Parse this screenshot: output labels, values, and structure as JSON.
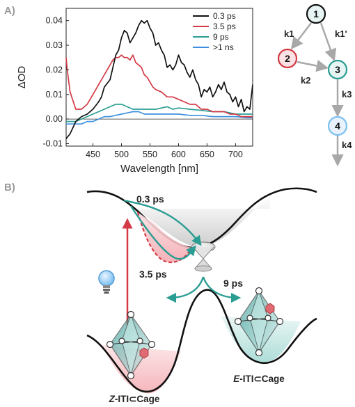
{
  "panel_a_label": "A)",
  "panel_b_label": "B)",
  "chart_data": {
    "type": "line",
    "xlabel": "Wavelength [nm]",
    "ylabel": "ΔOD",
    "xlim": [
      403,
      730
    ],
    "ylim": [
      -0.011,
      0.045
    ],
    "x_ticks": [
      450,
      500,
      550,
      600,
      650,
      700
    ],
    "y_ticks": [
      -0.01,
      0.0,
      0.01,
      0.02,
      0.03,
      0.04
    ],
    "y_tick_labels": [
      "-0.01",
      "0.00",
      "0.01",
      "0.02",
      "0.03",
      "0.04"
    ],
    "zero_line": true,
    "grid": false,
    "legend_position": "top-right",
    "series": [
      {
        "name": "0.3 ps",
        "color": "#111111",
        "x": [
          403,
          410,
          420,
          430,
          440,
          450,
          460,
          465,
          470,
          480,
          485,
          490,
          495,
          500,
          505,
          510,
          515,
          520,
          525,
          530,
          535,
          540,
          545,
          550,
          555,
          560,
          565,
          570,
          575,
          580,
          585,
          590,
          595,
          600,
          605,
          610,
          615,
          620,
          625,
          630,
          635,
          640,
          645,
          650,
          655,
          660,
          665,
          670,
          675,
          680,
          685,
          690,
          695,
          700,
          705,
          710,
          715,
          720,
          725,
          730
        ],
        "y": [
          -0.008,
          -0.006,
          -0.001,
          0.001,
          0.002,
          0.004,
          0.007,
          0.009,
          0.013,
          0.016,
          0.021,
          0.026,
          0.028,
          0.033,
          0.036,
          0.035,
          0.031,
          0.033,
          0.035,
          0.038,
          0.04,
          0.039,
          0.04,
          0.037,
          0.035,
          0.03,
          0.031,
          0.028,
          0.026,
          0.021,
          0.022,
          0.02,
          0.022,
          0.026,
          0.023,
          0.022,
          0.019,
          0.017,
          0.02,
          0.016,
          0.014,
          0.009,
          0.012,
          0.011,
          0.013,
          0.009,
          0.011,
          0.014,
          0.012,
          0.015,
          0.011,
          0.01,
          0.007,
          0.009,
          0.005,
          0.008,
          0.003,
          0.005,
          0.004,
          0.014
        ]
      },
      {
        "name": "3.5 ps",
        "color": "#d33a45",
        "x": [
          403,
          405,
          410,
          420,
          430,
          440,
          450,
          460,
          470,
          480,
          485,
          490,
          495,
          500,
          505,
          510,
          515,
          520,
          525,
          530,
          535,
          540,
          545,
          550,
          555,
          560,
          570,
          580,
          590,
          600,
          610,
          620,
          630,
          640,
          650,
          660,
          670,
          680,
          690,
          700,
          710,
          720,
          730
        ],
        "y": [
          0.025,
          0.02,
          0.011,
          0.004,
          0.004,
          0.006,
          0.01,
          0.014,
          0.018,
          0.022,
          0.024,
          0.025,
          0.025,
          0.026,
          0.025,
          0.025,
          0.024,
          0.026,
          0.023,
          0.022,
          0.021,
          0.018,
          0.017,
          0.015,
          0.013,
          0.012,
          0.011,
          0.009,
          0.009,
          0.008,
          0.007,
          0.006,
          0.006,
          0.004,
          0.004,
          0.003,
          0.003,
          0.003,
          0.002,
          0.002,
          0.001,
          0.001,
          0.001
        ]
      },
      {
        "name": "9 ps",
        "color": "#2a9d93",
        "x": [
          403,
          410,
          420,
          430,
          440,
          450,
          460,
          470,
          480,
          490,
          500,
          510,
          520,
          530,
          540,
          550,
          560,
          570,
          580,
          590,
          600,
          620,
          640,
          660,
          680,
          700,
          720,
          730
        ],
        "y": [
          -0.001,
          -0.001,
          -0.001,
          0.0,
          0.001,
          0.002,
          0.003,
          0.004,
          0.005,
          0.006,
          0.006,
          0.005,
          0.004,
          0.004,
          0.004,
          0.004,
          0.004,
          0.0045,
          0.005,
          0.004,
          0.0045,
          0.004,
          0.0035,
          0.003,
          0.003,
          0.002,
          0.002,
          0.002
        ]
      },
      {
        "name": ">1 ns",
        "color": "#3c8fe0",
        "x": [
          403,
          410,
          420,
          430,
          440,
          450,
          460,
          470,
          480,
          490,
          500,
          510,
          520,
          530,
          540,
          560,
          580,
          600,
          620,
          640,
          660,
          680,
          700,
          720,
          730
        ],
        "y": [
          -0.002,
          -0.002,
          -0.002,
          -0.002,
          -0.001,
          -0.001,
          0.0,
          0.001,
          0.001,
          0.0015,
          0.002,
          0.0025,
          0.003,
          0.003,
          0.002,
          0.002,
          0.002,
          0.002,
          0.0015,
          0.0015,
          0.001,
          0.001,
          0.001,
          0.0005,
          0.0005
        ]
      }
    ]
  },
  "kinetic_scheme": {
    "states": [
      {
        "label": "1",
        "color": "#111111"
      },
      {
        "label": "2",
        "color": "#d33a45"
      },
      {
        "label": "3",
        "color": "#2a9d93"
      },
      {
        "label": "4",
        "color": "#3c8fe0"
      }
    ],
    "rates": [
      "k1",
      "k1'",
      "k2",
      "k3",
      "k4"
    ]
  },
  "energy_diagram": {
    "time_labels": [
      "0.3 ps",
      "3.5 ps",
      "9 ps"
    ],
    "species_left_prefix": "Z",
    "species_right_prefix": "E",
    "species_suffix": "-ITI⊂Cage",
    "colors": {
      "pink": "#f3bcc0",
      "teal": "#2a9d93",
      "red": "#d33a45",
      "gray": "#bbbbbb"
    }
  }
}
